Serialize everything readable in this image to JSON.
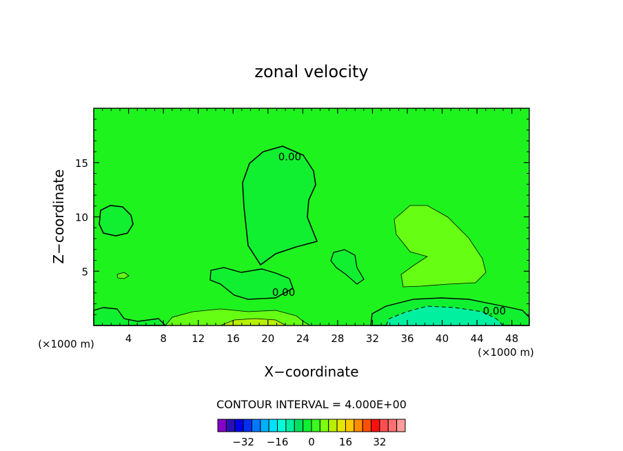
{
  "chart_data": {
    "type": "contour",
    "title": "zonal velocity",
    "xlabel": "X−coordinate",
    "ylabel": "Z−coordinate",
    "x_unit_left": "(×1000 m)",
    "x_unit_right": "(×1000 m)",
    "xlim": [
      0,
      50
    ],
    "ylim": [
      0,
      20
    ],
    "x_ticks": [
      4,
      8,
      12,
      16,
      20,
      24,
      28,
      32,
      36,
      40,
      44,
      48
    ],
    "y_ticks": [
      5,
      10,
      15
    ],
    "background_field_color": "#1ef31e",
    "contour_labels": [
      {
        "text": "0.00",
        "x": 22.5,
        "z": 15.6
      },
      {
        "text": "0.00",
        "x": 21.8,
        "z": 3.1
      },
      {
        "text": "0.00",
        "x": 46.0,
        "z": 1.4
      }
    ],
    "contour_interval_label": "CONTOUR INTERVAL = 4.000E+00",
    "colorbar": {
      "colors": [
        "#8800c8",
        "#2a10b4",
        "#0000e6",
        "#0030f0",
        "#0078ff",
        "#00b0ff",
        "#00e0ff",
        "#00ffd8",
        "#00f0a0",
        "#00e060",
        "#10f030",
        "#3cf820",
        "#7cff10",
        "#b8f000",
        "#e6e600",
        "#ffc800",
        "#ff8c00",
        "#ff5000",
        "#ff1010",
        "#ff5050",
        "#ff7070",
        "#ff9c9c"
      ],
      "tick_labels": [
        "−32",
        "−16",
        "0",
        "16",
        "32"
      ],
      "tick_values": [
        -32,
        -16,
        0,
        16,
        32
      ]
    }
  }
}
